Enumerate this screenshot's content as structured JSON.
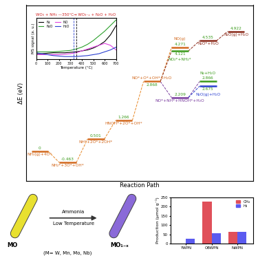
{
  "chart_data": [
    {
      "type": "energy_diagram",
      "x_label": "Reaction Path",
      "y_label": "ΔE (eV)",
      "xlim": [
        -0.5,
        7.6
      ],
      "ylim": [
        -1.2,
        6
      ],
      "tick_labels": false,
      "levels": [
        {
          "x": 0,
          "value": 0,
          "label": "NH₃(g)+4O*",
          "color": "#d2691e"
        },
        {
          "x": 1,
          "value": -0.463,
          "label": "NH₂*+3O*+OH*",
          "color": "#d2691e"
        },
        {
          "x": 2,
          "value": 0.501,
          "label": "NH*+2O*+2OH*",
          "color": "#d2691e"
        },
        {
          "x": 3,
          "value": 1.266,
          "label": "HNOH*+2O*+OH*",
          "color": "#d2691e"
        },
        {
          "x": 4,
          "value": 2.868,
          "label": "NO*+O*+OH*+H₂O",
          "color": "#d2691e"
        },
        {
          "x": 5,
          "value": 4.271,
          "label": "NO(g)",
          "color": "#d2691e"
        },
        {
          "x": 5,
          "value": 4.121,
          "label": "NO₂*+NH₂*",
          "color": "#3a9a1a"
        },
        {
          "x": 6,
          "value": 4.535,
          "label": "N₂O*+H₂O",
          "color": "#8b2a1a"
        },
        {
          "x": 7,
          "value": 4.922,
          "label": "N₂O(g)+H₂O",
          "color": "#8b2a1a"
        },
        {
          "x": 5,
          "value": 2.209,
          "label": "NO*+NH*+HNOH*+H₂O",
          "color": "#7b3fa0"
        },
        {
          "x": 6,
          "value": 2.866,
          "label": "N₂+H₂O",
          "color": "#3a9a1a"
        },
        {
          "x": 6,
          "value": 2.675,
          "label": "N₂O(g)+H₂O",
          "color": "#2a3fd0"
        }
      ],
      "paths": [
        {
          "levels": [
            0,
            1,
            2,
            3,
            4
          ],
          "color": "#e8892a"
        },
        {
          "levels": [
            4,
            5
          ],
          "color": "#e8892a"
        },
        {
          "levels": [
            4,
            6,
            7,
            8
          ],
          "color": "#8b2a1a"
        },
        {
          "levels": [
            4,
            9,
            10
          ],
          "color": "#7b3fa0"
        },
        {
          "levels": [
            9,
            11
          ],
          "color": "#2a3fd0"
        }
      ]
    },
    {
      "type": "line",
      "title": "WO₃ + NH₃ —350°C→ WO₃₋ₓ + N₂O + H₂O",
      "x_label": "Temperature (°C)",
      "y_label": "MS signal (a. u.)",
      "x": [
        0,
        50,
        100,
        150,
        200,
        250,
        300,
        350,
        400,
        450,
        500,
        550,
        600,
        650,
        700
      ],
      "xlim": [
        0,
        700
      ],
      "xticks": [
        0,
        100,
        200,
        300,
        400,
        500,
        600,
        700
      ],
      "ylim": [
        2.6,
        7
      ],
      "tick_labels": "x",
      "legend": "upper left",
      "vlines": [
        {
          "x": 330,
          "color": "#2a3fd0"
        },
        {
          "x": 350,
          "color": "black"
        }
      ],
      "series": [
        {
          "name": "N₂",
          "color": "black",
          "values": [
            3.2,
            3.2,
            3.25,
            3.3,
            3.3,
            3.3,
            3.35,
            3.4,
            3.5,
            3.6,
            3.8,
            4.1,
            4.5,
            5.2,
            6.2
          ]
        },
        {
          "name": "N₂O",
          "color": "#2ca02c",
          "values": [
            3.4,
            3.4,
            3.4,
            3.4,
            3.45,
            3.5,
            3.55,
            3.7,
            3.9,
            4.2,
            4.6,
            5.1,
            5.6,
            6.2,
            6.8
          ]
        },
        {
          "name": "NO",
          "color": "#e040e0",
          "values": [
            3.1,
            3.1,
            3.1,
            3.1,
            3.1,
            3.15,
            3.2,
            3.3,
            3.5,
            3.7,
            3.9,
            4.1,
            4.3,
            4.1,
            3.6
          ]
        },
        {
          "name": "H₂O",
          "color": "#2a3fd0",
          "values": [
            3.3,
            3.2,
            3.1,
            3.0,
            2.95,
            2.9,
            2.9,
            2.9,
            2.95,
            3.0,
            3.1,
            3.2,
            3.4,
            3.6,
            3.9
          ]
        }
      ]
    },
    {
      "type": "bar",
      "y_label": "Production (μmol g⁻¹)",
      "categories": [
        "YWPN",
        "OBWPN",
        "NWPN"
      ],
      "ylim": [
        0,
        250
      ],
      "yticks": [
        0,
        50,
        100,
        150,
        200,
        250
      ],
      "legend": "upper right",
      "series": [
        {
          "name": "CH₄",
          "color": "#e0505a",
          "values": [
            3,
            228,
            63
          ]
        },
        {
          "name": "H₂",
          "color": "#5b5bf0",
          "values": [
            27,
            58,
            63
          ]
        }
      ]
    }
  ],
  "schematic": {
    "left_label": "MO",
    "left_color": "#e8e030",
    "right_label": "MO₁₋ₓ",
    "right_color": "#8a6ad8",
    "arrow_top": "Ammonia",
    "arrow_bottom": "Low Temperature",
    "note": "(M= W, Mn, Mo, Nb)"
  }
}
